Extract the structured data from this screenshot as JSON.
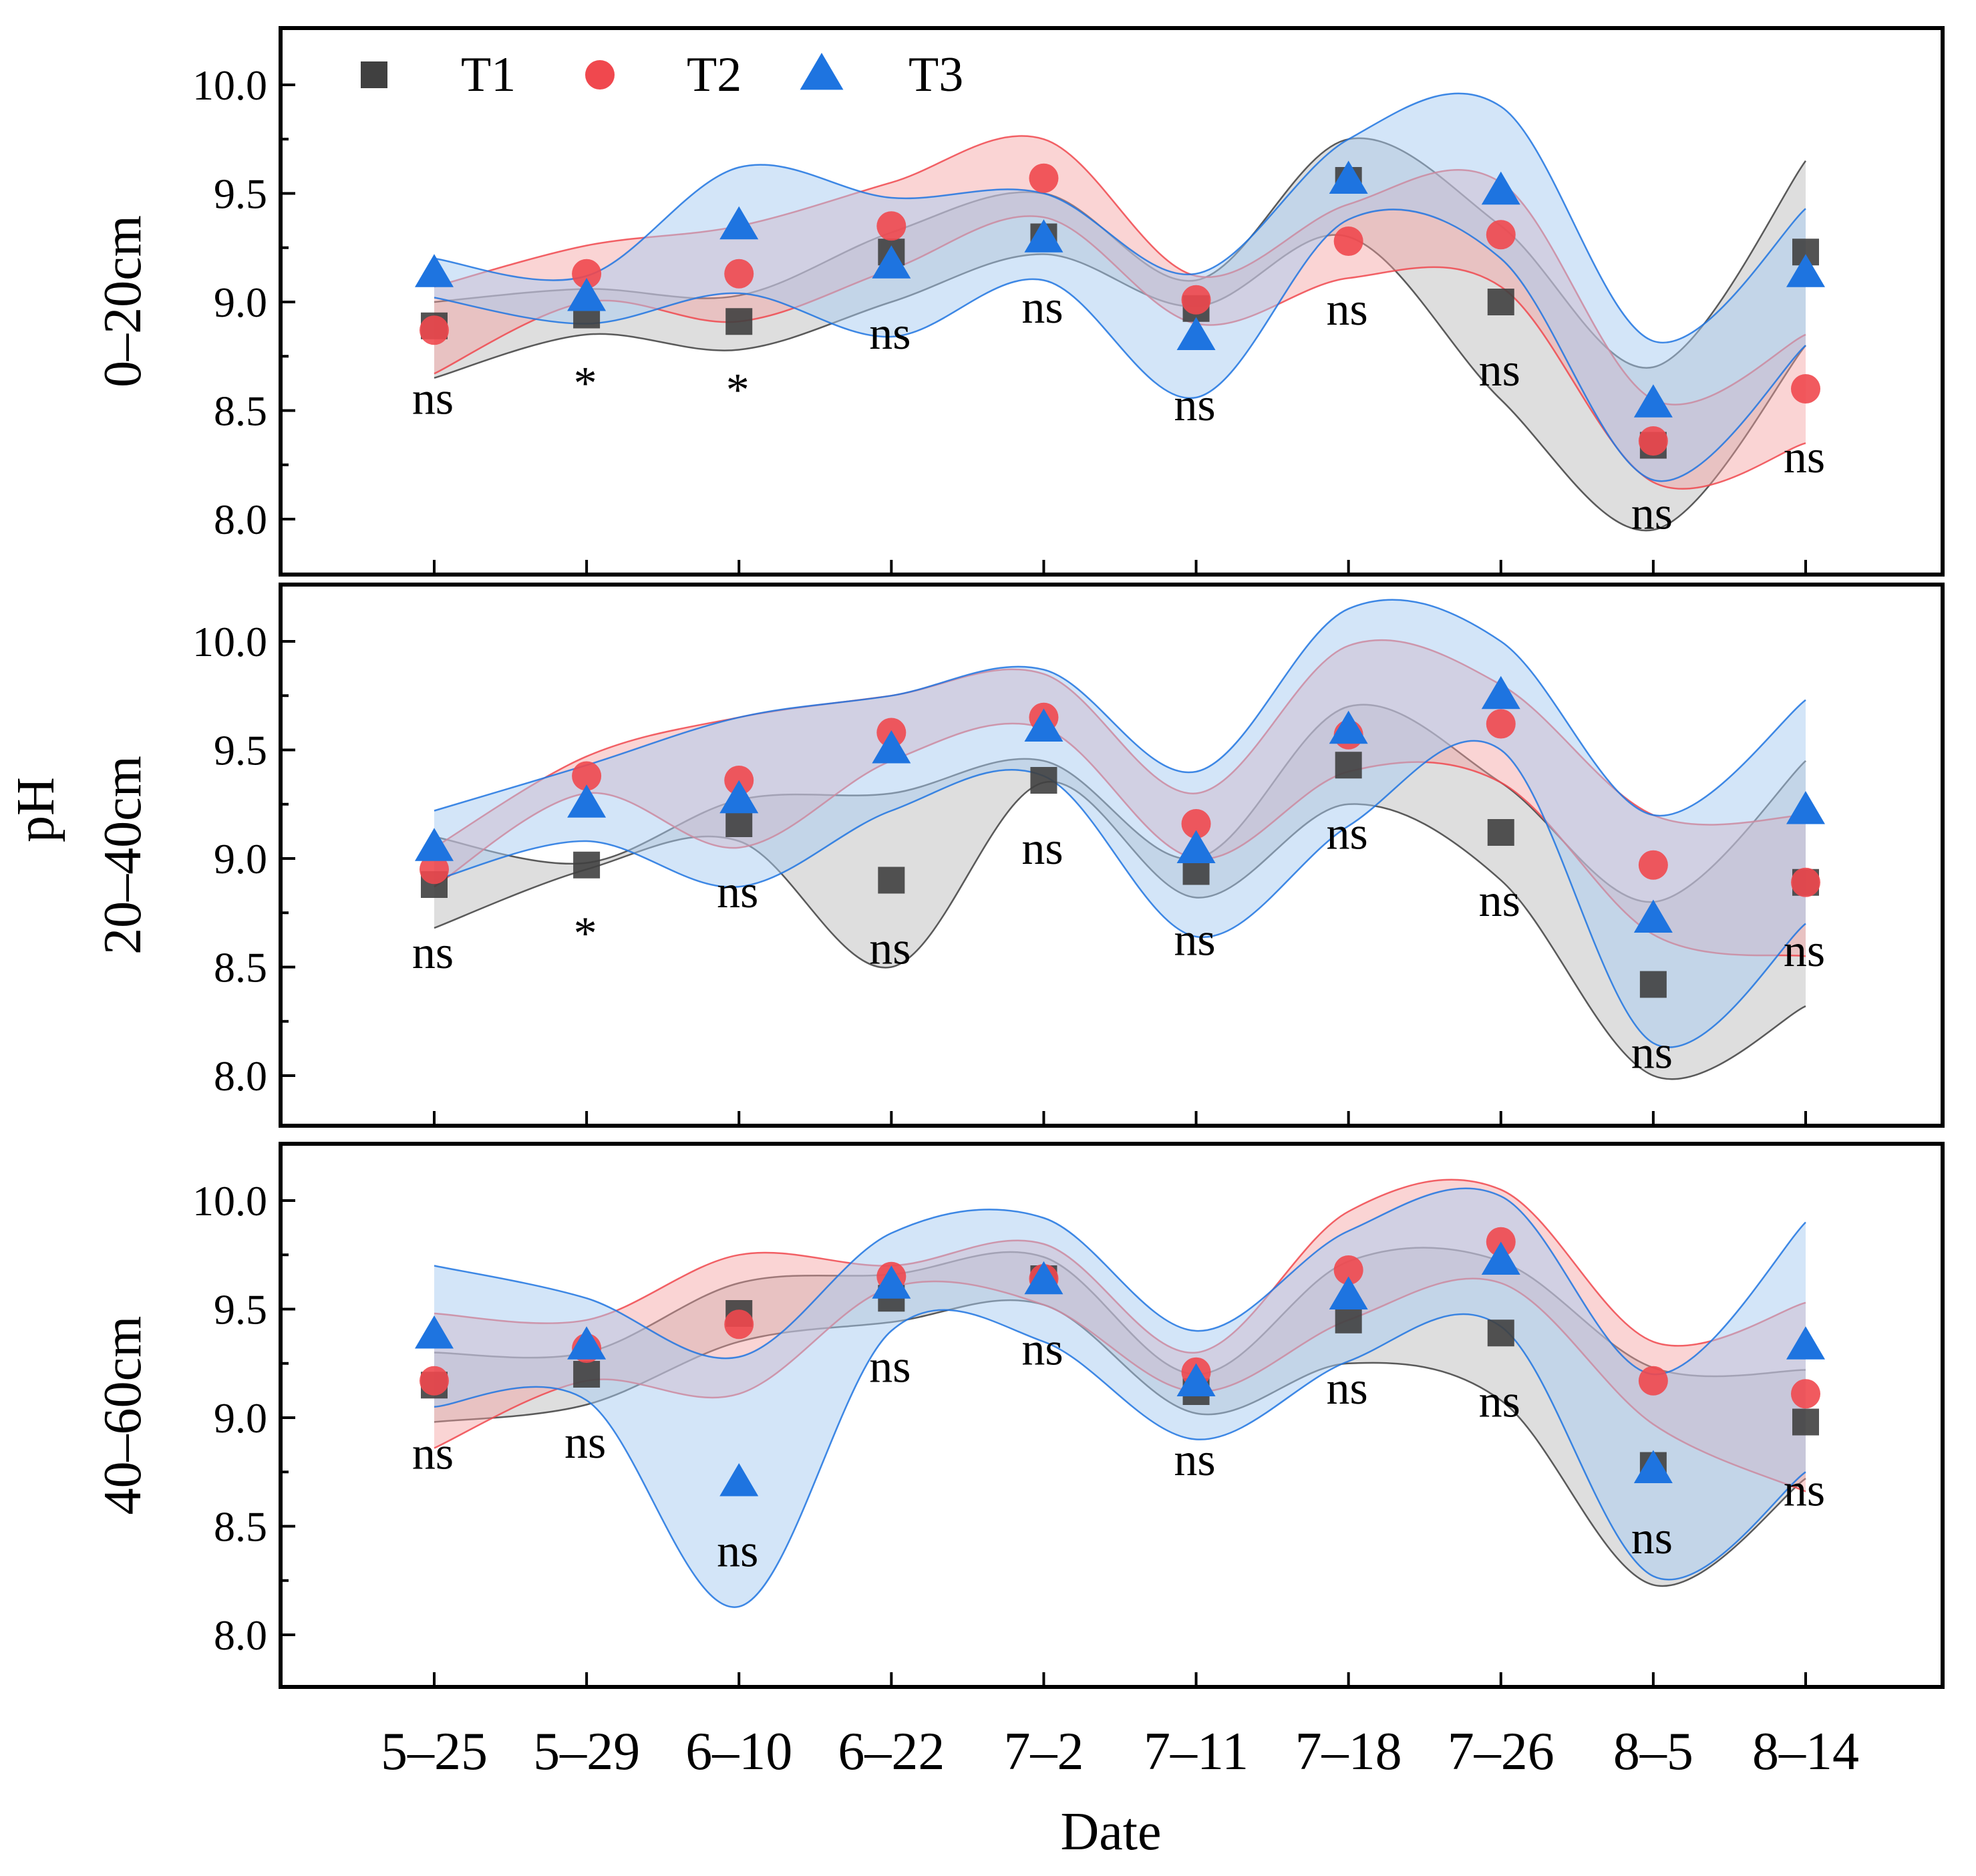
{
  "chart_data": {
    "type": "scatter",
    "xlabel": "Date",
    "ylabel": "pH",
    "categories": [
      "5–25",
      "5–29",
      "6–10",
      "6–22",
      "7–2",
      "7–11",
      "7–18",
      "7–26",
      "8–5",
      "8–14"
    ],
    "ylim": [
      7.8,
      10.25
    ],
    "yticks": [
      "8.0",
      "8.5",
      "9.0",
      "9.5",
      "10.0"
    ],
    "legend": {
      "placement": "top-left",
      "entries": [
        "T1",
        "T2",
        "T3"
      ]
    },
    "series_styles": [
      {
        "name": "T1",
        "marker": "square",
        "color": "#404040",
        "band": "#bdbdbd"
      },
      {
        "name": "T2",
        "marker": "circle",
        "color": "#f0484e",
        "band": "#f5a0a0"
      },
      {
        "name": "T3",
        "marker": "triangle",
        "color": "#1e74e0",
        "band": "#a8ccf2"
      }
    ],
    "panels": [
      {
        "label": "0–20cm",
        "series": [
          {
            "name": "T1",
            "values": [
              8.89,
              8.94,
              8.91,
              9.23,
              9.3,
              8.97,
              9.56,
              9.0,
              8.34,
              9.23
            ]
          },
          {
            "name": "T2",
            "values": [
              8.87,
              9.13,
              9.13,
              9.35,
              9.57,
              9.01,
              9.28,
              9.31,
              8.36,
              8.6
            ]
          },
          {
            "name": "T3",
            "values": [
              9.13,
              9.02,
              9.35,
              9.17,
              9.29,
              8.84,
              9.56,
              9.51,
              8.53,
              9.13
            ]
          }
        ],
        "significance": [
          "ns",
          "*",
          "*",
          "ns",
          "ns",
          "ns",
          "ns",
          "ns",
          "ns",
          "ns"
        ],
        "bands": [
          {
            "name": "T1",
            "upper": [
              9.0,
              9.06,
              9.03,
              9.32,
              9.5,
              9.1,
              9.75,
              9.35,
              8.7,
              9.65
            ],
            "lower": [
              8.65,
              8.85,
              8.78,
              9.0,
              9.22,
              8.98,
              9.3,
              8.55,
              7.95,
              8.8
            ]
          },
          {
            "name": "T2",
            "upper": [
              9.07,
              9.26,
              9.35,
              9.55,
              9.75,
              9.12,
              9.45,
              9.55,
              8.55,
              8.85
            ]
          },
          {
            "name": "T3",
            "upper": [
              9.2,
              9.12,
              9.62,
              9.48,
              9.5,
              9.13,
              9.75,
              9.9,
              8.82,
              9.43
            ],
            "lower": [
              9.02,
              8.9,
              9.04,
              8.84,
              9.1,
              8.56,
              9.38,
              9.2,
              8.18,
              8.8
            ]
          }
        ]
      },
      {
        "label": "20–40cm",
        "series": [
          {
            "name": "T1",
            "values": [
              8.88,
              8.97,
              9.16,
              8.9,
              9.36,
              8.94,
              9.43,
              9.12,
              8.42,
              8.89
            ]
          },
          {
            "name": "T2",
            "values": [
              8.95,
              9.38,
              9.36,
              9.58,
              9.65,
              9.16,
              9.57,
              9.62,
              8.97,
              8.89
            ]
          },
          {
            "name": "T3",
            "values": [
              9.05,
              9.25,
              9.27,
              9.5,
              9.6,
              9.04,
              9.59,
              9.75,
              8.72,
              9.22
            ]
          }
        ],
        "significance": [
          "ns",
          "*",
          "ns",
          "ns",
          "ns",
          "ns",
          "ns",
          "ns",
          "ns",
          "ns"
        ],
        "bands": [
          {
            "name": "T1",
            "upper": [
              9.1,
              8.98,
              9.27,
              9.3,
              9.45,
              9.0,
              9.7,
              9.35,
              8.8,
              9.45
            ],
            "lower": [
              8.68,
              8.95,
              9.08,
              8.5,
              9.35,
              8.82,
              9.25,
              8.9,
              8.0,
              8.32
            ]
          },
          {
            "name": "T2",
            "upper": [
              9.05,
              9.47,
              9.65,
              9.75,
              9.85,
              9.3,
              9.98,
              9.8,
              9.2,
              9.2
            ],
            "lower": [
              8.87,
              9.3,
              9.05,
              9.45,
              9.6,
              9.0,
              9.4,
              9.35,
              8.65,
              8.55
            ]
          },
          {
            "name": "T3",
            "upper": [
              9.22,
              9.43,
              9.65,
              9.75,
              9.87,
              9.4,
              10.15,
              10.0,
              9.2,
              9.73
            ],
            "lower": [
              8.9,
              9.08,
              8.87,
              9.22,
              9.38,
              8.64,
              9.15,
              9.5,
              8.15,
              8.7
            ]
          }
        ]
      },
      {
        "label": "40–60cm",
        "series": [
          {
            "name": "T1",
            "values": [
              9.15,
              9.2,
              9.48,
              9.55,
              9.64,
              9.12,
              9.45,
              9.39,
              8.78,
              8.98
            ]
          },
          {
            "name": "T2",
            "values": [
              9.17,
              9.32,
              9.43,
              9.65,
              9.64,
              9.21,
              9.68,
              9.81,
              9.17,
              9.11
            ]
          },
          {
            "name": "T3",
            "values": [
              9.38,
              9.33,
              8.7,
              9.61,
              9.63,
              9.16,
              9.56,
              9.72,
              8.76,
              9.33
            ]
          }
        ],
        "significance": [
          "ns",
          "ns",
          "ns",
          "ns",
          "ns",
          "ns",
          "ns",
          "ns",
          "ns",
          "ns"
        ],
        "bands": [
          {
            "name": "T1",
            "upper": [
              9.3,
              9.3,
              9.62,
              9.66,
              9.74,
              9.2,
              9.72,
              9.72,
              9.23,
              9.22
            ],
            "lower": [
              8.98,
              9.06,
              9.35,
              9.44,
              9.52,
              9.02,
              9.25,
              9.08,
              8.23,
              8.72
            ]
          },
          {
            "name": "T2",
            "upper": [
              9.48,
              9.45,
              9.75,
              9.7,
              9.8,
              9.3,
              9.95,
              10.05,
              9.35,
              9.53
            ],
            "lower": [
              8.86,
              9.17,
              9.11,
              9.6,
              9.52,
              9.12,
              9.45,
              9.62,
              8.97,
              8.66
            ]
          },
          {
            "name": "T3",
            "upper": [
              9.7,
              9.55,
              9.28,
              9.85,
              9.92,
              9.4,
              9.86,
              10.02,
              9.2,
              9.9
            ],
            "lower": [
              9.05,
              9.08,
              8.13,
              9.4,
              9.35,
              8.9,
              9.26,
              9.42,
              8.27,
              8.75
            ]
          }
        ]
      }
    ]
  }
}
